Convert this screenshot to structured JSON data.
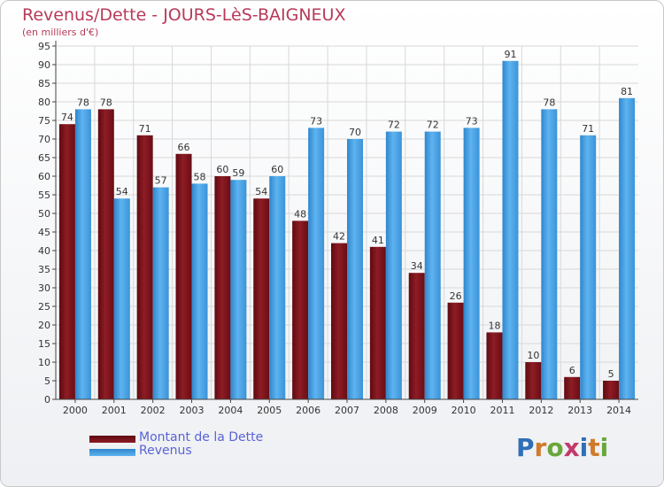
{
  "header": {
    "title": "Revenus/Dette - JOURS-LèS-BAIGNEUX",
    "subtitle": "(en milliers d'€)"
  },
  "logo": {
    "text": "Proxiti",
    "letters": [
      "P",
      "r",
      "o",
      "x",
      "i",
      "t",
      "i"
    ],
    "colors": [
      "#2f6fb8",
      "#d07a2a",
      "#6aa73a",
      "#c23a6a",
      "#2f6fb8",
      "#d07a2a",
      "#6aa73a"
    ]
  },
  "chart_data": {
    "type": "bar",
    "title": "Revenus/Dette - JOURS-LèS-BAIGNEUX",
    "subtitle": "(en milliers d'€)",
    "xlabel": "",
    "ylabel": "",
    "ylim": [
      0,
      95
    ],
    "ytick_step": 5,
    "grid": true,
    "legend_position": "bottom-left",
    "categories": [
      "2000",
      "2001",
      "2002",
      "2003",
      "2004",
      "2005",
      "2006",
      "2007",
      "2008",
      "2009",
      "2010",
      "2011",
      "2012",
      "2013",
      "2014"
    ],
    "series": [
      {
        "name": "Montant de la Dette",
        "color": "#7a1018",
        "values": [
          74,
          78,
          71,
          66,
          60,
          54,
          48,
          42,
          41,
          34,
          26,
          18,
          10,
          6,
          5
        ]
      },
      {
        "name": "Revenus",
        "color": "#4aa3e6",
        "values": [
          78,
          54,
          57,
          58,
          59,
          60,
          73,
          70,
          72,
          72,
          73,
          91,
          78,
          71,
          81
        ]
      }
    ]
  }
}
